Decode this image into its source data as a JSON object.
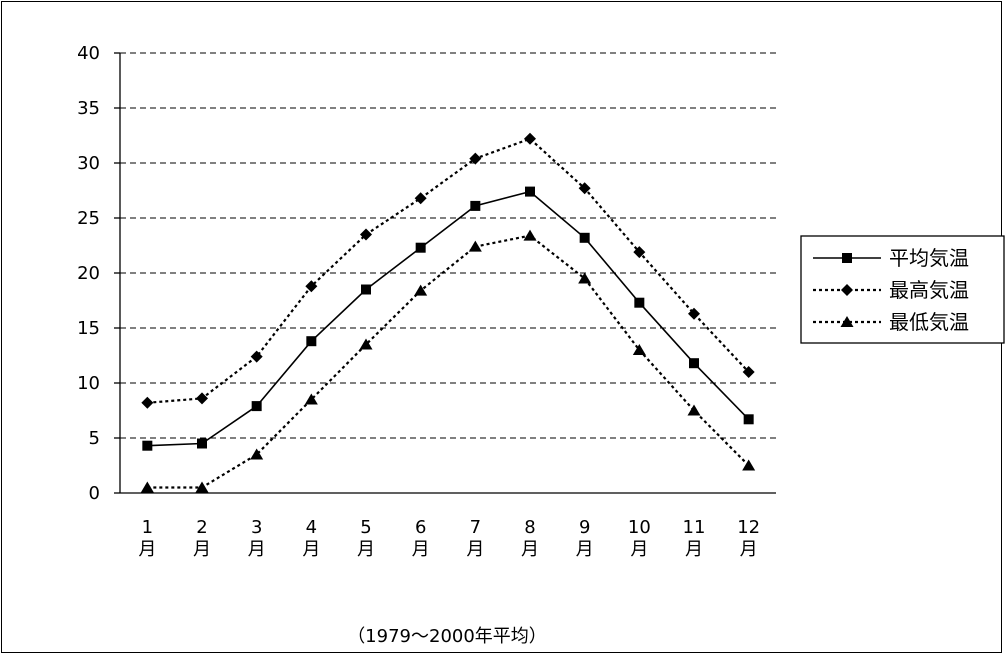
{
  "chart_data": {
    "type": "line",
    "categories": [
      "1月",
      "2月",
      "3月",
      "4月",
      "5月",
      "6月",
      "7月",
      "8月",
      "9月",
      "10月",
      "11月",
      "12月"
    ],
    "category_lines": [
      [
        "1",
        "月"
      ],
      [
        "2",
        "月"
      ],
      [
        "3",
        "月"
      ],
      [
        "4",
        "月"
      ],
      [
        "5",
        "月"
      ],
      [
        "6",
        "月"
      ],
      [
        "7",
        "月"
      ],
      [
        "8",
        "月"
      ],
      [
        "9",
        "月"
      ],
      [
        "10",
        "月"
      ],
      [
        "11",
        "月"
      ],
      [
        "12",
        "月"
      ]
    ],
    "series": [
      {
        "name": "平均気温",
        "marker": "square",
        "line_style": "solid",
        "values": [
          4.3,
          4.5,
          7.9,
          13.8,
          18.5,
          22.3,
          26.1,
          27.4,
          23.2,
          17.3,
          11.8,
          6.7
        ]
      },
      {
        "name": "最高気温",
        "marker": "diamond",
        "line_style": "dotted",
        "values": [
          8.2,
          8.6,
          12.4,
          18.8,
          23.5,
          26.8,
          30.4,
          32.2,
          27.7,
          21.9,
          16.3,
          11.0
        ]
      },
      {
        "name": "最低気温",
        "marker": "triangle",
        "line_style": "dotted",
        "values": [
          0.5,
          0.5,
          3.5,
          8.5,
          13.5,
          18.4,
          22.4,
          23.4,
          19.5,
          13.0,
          7.5,
          2.5
        ]
      }
    ],
    "ylim": [
      0,
      40
    ],
    "yticks": [
      0,
      5,
      10,
      15,
      20,
      25,
      30,
      35,
      40
    ],
    "grid": "horizontal-dashed",
    "legend_position": "right",
    "footnote": "（1979～2000年平均）",
    "colors": {
      "line": "#000000",
      "background": "#ffffff"
    }
  }
}
